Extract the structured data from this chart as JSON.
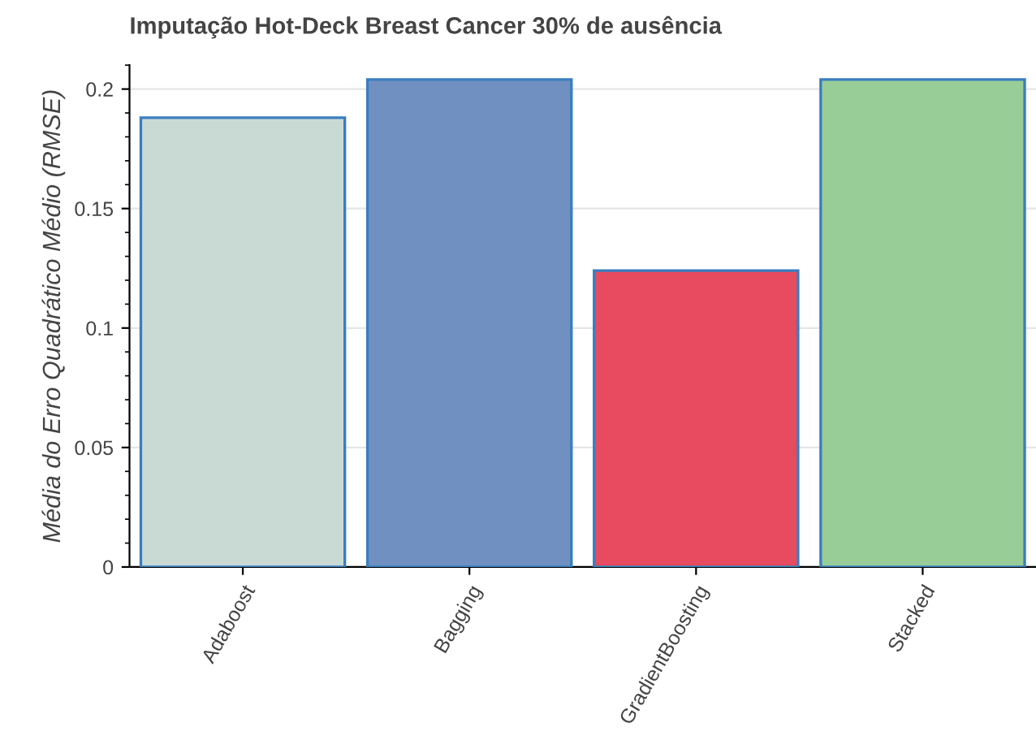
{
  "chart_data": {
    "type": "bar",
    "title": "Imputação Hot-Deck Breast Cancer 30% de ausência",
    "ylabel": "Média do Erro Quadrático Médio (RMSE)",
    "categories": [
      "Adaboost",
      "Bagging",
      "GradientBoosting",
      "Stacked"
    ],
    "values": [
      0.188,
      0.204,
      0.124,
      0.204
    ],
    "colors": [
      "#c9dad5",
      "#7190c2",
      "#e84a5f",
      "#99cd98"
    ],
    "ylim": [
      0,
      0.21
    ],
    "yticks": [
      0,
      0.05,
      {
        "value": 0.1,
        "label": "0.1"
      },
      0.15,
      {
        "value": 0.2,
        "label": "0.2"
      }
    ],
    "grid": "y"
  }
}
